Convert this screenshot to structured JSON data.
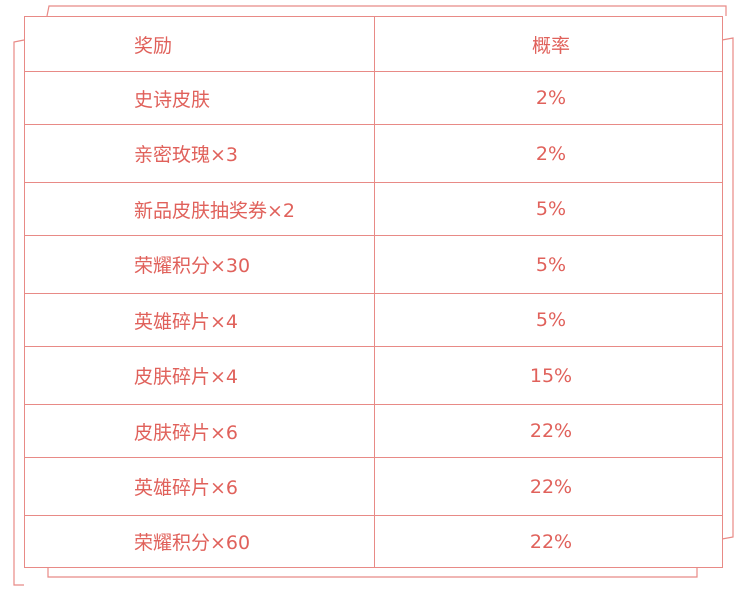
{
  "colors": {
    "accent": "#e0615b",
    "border": "#e88a86"
  },
  "table": {
    "headers": {
      "reward": "奖励",
      "probability": "概率"
    },
    "rows": [
      {
        "reward": "史诗皮肤",
        "probability": "2%"
      },
      {
        "reward": "亲密玫瑰×3",
        "probability": "2%"
      },
      {
        "reward": "新品皮肤抽奖券×2",
        "probability": "5%"
      },
      {
        "reward": "荣耀积分×30",
        "probability": "5%"
      },
      {
        "reward": "英雄碎片×4",
        "probability": "5%"
      },
      {
        "reward": "皮肤碎片×4",
        "probability": "15%"
      },
      {
        "reward": "皮肤碎片×6",
        "probability": "22%"
      },
      {
        "reward": "英雄碎片×6",
        "probability": "22%"
      },
      {
        "reward": "荣耀积分×60",
        "probability": "22%"
      }
    ]
  }
}
